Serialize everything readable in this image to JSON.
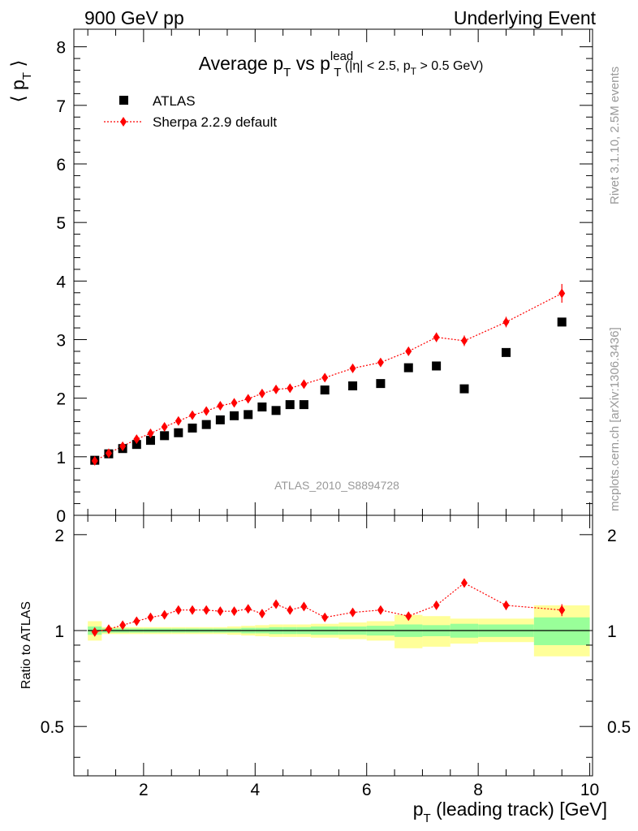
{
  "header": {
    "left": "900 GeV pp",
    "right": "Underlying Event"
  },
  "side_text": {
    "upper": "Rivet 3.1.10,  2.5M events",
    "lower": "mcplots.cern.ch [arXiv:1306.3436]"
  },
  "chart_data": [
    {
      "type": "scatter",
      "title": "Average p_T vs p_T^lead (|η| < 2.5, p_T > 0.5 GeV)",
      "title_parts": {
        "main": "Average p",
        "sub1": "T",
        "vs": " vs p",
        "sup": "lead",
        "sub2": "T",
        "paren_a": " (|η| < 2.5, p",
        "sub3": "T",
        "paren_b": " > 0.5 GeV)"
      },
      "ylabel": "⟨ p_T ⟩",
      "ylabel_parts": {
        "open": "⟨ p",
        "sub": "T",
        "close": " ⟩"
      },
      "xlim": [
        0.75,
        10.05
      ],
      "ylim": [
        0,
        8.3
      ],
      "x_ticks": [
        2,
        4,
        6,
        8,
        10
      ],
      "y_ticks": [
        0,
        1,
        2,
        3,
        4,
        5,
        6,
        7,
        8
      ],
      "watermark": "ATLAS_2010_S8894728",
      "legend_position": "top-left",
      "series": [
        {
          "name": "ATLAS",
          "marker": "square",
          "color": "#000000",
          "x": [
            1.125,
            1.375,
            1.625,
            1.875,
            2.125,
            2.375,
            2.625,
            2.875,
            3.125,
            3.375,
            3.625,
            3.875,
            4.125,
            4.375,
            4.625,
            4.875,
            5.25,
            5.75,
            6.25,
            6.75,
            7.25,
            7.75,
            8.5,
            9.5
          ],
          "y": [
            0.94,
            1.05,
            1.14,
            1.21,
            1.28,
            1.36,
            1.41,
            1.49,
            1.55,
            1.63,
            1.7,
            1.72,
            1.85,
            1.79,
            1.89,
            1.89,
            2.14,
            2.21,
            2.25,
            2.52,
            2.55,
            2.16,
            2.78,
            3.3
          ]
        },
        {
          "name": "Sherpa 2.2.9 default",
          "marker": "diamond",
          "color": "#ff0000",
          "x": [
            1.125,
            1.375,
            1.625,
            1.875,
            2.125,
            2.375,
            2.625,
            2.875,
            3.125,
            3.375,
            3.625,
            3.875,
            4.125,
            4.375,
            4.625,
            4.875,
            5.25,
            5.75,
            6.25,
            6.75,
            7.25,
            7.75,
            8.5,
            9.5
          ],
          "y": [
            0.93,
            1.06,
            1.18,
            1.3,
            1.4,
            1.51,
            1.61,
            1.71,
            1.78,
            1.87,
            1.92,
            1.99,
            2.08,
            2.15,
            2.17,
            2.24,
            2.35,
            2.51,
            2.61,
            2.8,
            3.04,
            2.98,
            3.3,
            3.79
          ],
          "yerr": [
            0.02,
            0.02,
            0.02,
            0.02,
            0.02,
            0.03,
            0.03,
            0.03,
            0.03,
            0.03,
            0.03,
            0.04,
            0.04,
            0.04,
            0.04,
            0.05,
            0.05,
            0.05,
            0.06,
            0.07,
            0.08,
            0.09,
            0.09,
            0.16
          ]
        }
      ]
    },
    {
      "type": "scatter",
      "ylabel": "Ratio to ATLAS",
      "xlabel": "p_T (leading track) [GeV]",
      "xlabel_parts": {
        "main": "p",
        "sub": "T",
        "rest": " (leading track) [GeV]"
      },
      "xlim": [
        0.75,
        10.05
      ],
      "ylim": [
        0.35,
        2.3
      ],
      "x_ticks": [
        2,
        4,
        6,
        8,
        10
      ],
      "y_ticks": [
        0.5,
        1,
        2
      ],
      "reference_band": {
        "x_edges": [
          1.0,
          1.25,
          1.5,
          1.75,
          2.0,
          2.25,
          2.5,
          2.75,
          3.0,
          3.25,
          3.5,
          3.75,
          4.0,
          4.25,
          4.5,
          4.75,
          5.0,
          5.5,
          6.0,
          6.5,
          7.0,
          7.5,
          8.0,
          9.0,
          10.0
        ],
        "stat_lo": [
          0.97,
          0.985,
          0.985,
          0.985,
          0.985,
          0.985,
          0.985,
          0.985,
          0.985,
          0.985,
          0.985,
          0.98,
          0.98,
          0.975,
          0.975,
          0.975,
          0.97,
          0.97,
          0.965,
          0.955,
          0.96,
          0.95,
          0.955,
          0.9
        ],
        "stat_hi": [
          1.03,
          1.015,
          1.015,
          1.015,
          1.015,
          1.015,
          1.015,
          1.015,
          1.015,
          1.015,
          1.015,
          1.02,
          1.02,
          1.025,
          1.025,
          1.025,
          1.03,
          1.03,
          1.035,
          1.045,
          1.04,
          1.05,
          1.045,
          1.1
        ],
        "syst_lo": [
          0.93,
          0.975,
          0.975,
          0.975,
          0.975,
          0.975,
          0.975,
          0.975,
          0.975,
          0.975,
          0.97,
          0.965,
          0.96,
          0.955,
          0.955,
          0.955,
          0.95,
          0.94,
          0.93,
          0.88,
          0.89,
          0.91,
          0.92,
          0.83
        ],
        "syst_hi": [
          1.07,
          1.025,
          1.025,
          1.025,
          1.025,
          1.025,
          1.025,
          1.025,
          1.025,
          1.025,
          1.03,
          1.035,
          1.04,
          1.045,
          1.045,
          1.045,
          1.05,
          1.06,
          1.07,
          1.12,
          1.11,
          1.09,
          1.09,
          1.2
        ]
      },
      "series": [
        {
          "name": "Sherpa 2.2.9 default",
          "marker": "diamond",
          "color": "#ff0000",
          "x": [
            1.125,
            1.375,
            1.625,
            1.875,
            2.125,
            2.375,
            2.625,
            2.875,
            3.125,
            3.375,
            3.625,
            3.875,
            4.125,
            4.375,
            4.625,
            4.875,
            5.25,
            5.75,
            6.25,
            6.75,
            7.25,
            7.75,
            8.5,
            9.5
          ],
          "y": [
            0.99,
            1.01,
            1.04,
            1.07,
            1.1,
            1.12,
            1.16,
            1.16,
            1.16,
            1.15,
            1.15,
            1.17,
            1.13,
            1.21,
            1.16,
            1.19,
            1.1,
            1.14,
            1.16,
            1.11,
            1.2,
            1.41,
            1.2,
            1.16
          ],
          "yerr": [
            0.02,
            0.02,
            0.02,
            0.02,
            0.02,
            0.02,
            0.02,
            0.02,
            0.02,
            0.02,
            0.02,
            0.02,
            0.02,
            0.02,
            0.02,
            0.03,
            0.02,
            0.02,
            0.02,
            0.03,
            0.03,
            0.04,
            0.04,
            0.05
          ]
        }
      ]
    }
  ],
  "colors": {
    "data": "#000000",
    "mc": "#ff0000",
    "stat_band": "#99ff99",
    "syst_band": "#ffff99",
    "side_text": "#999999"
  }
}
